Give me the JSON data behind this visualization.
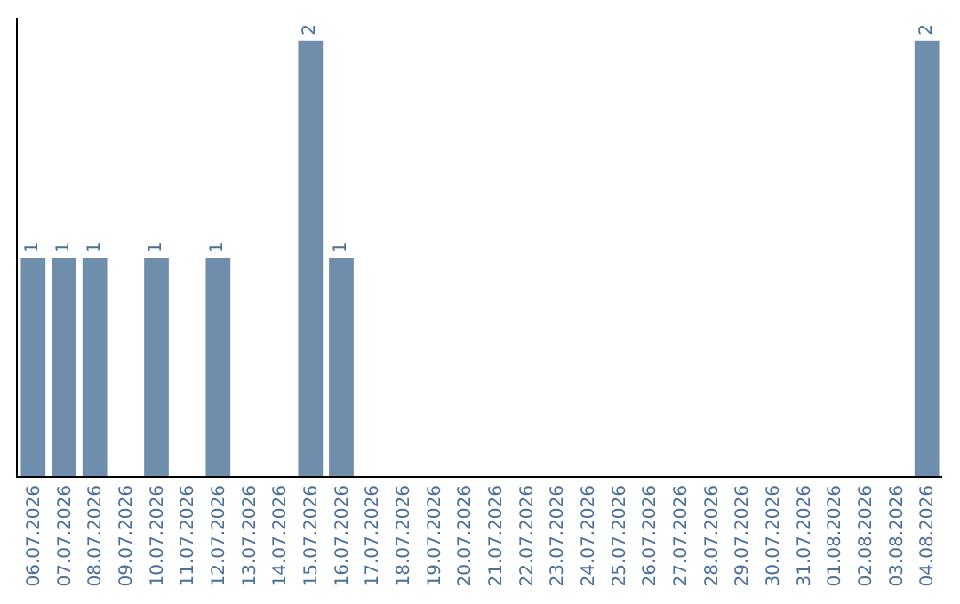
{
  "chart_data": {
    "type": "bar",
    "categories": [
      "06.07.2026",
      "07.07.2026",
      "08.07.2026",
      "09.07.2026",
      "10.07.2026",
      "11.07.2026",
      "12.07.2026",
      "13.07.2026",
      "14.07.2026",
      "15.07.2026",
      "16.07.2026",
      "17.07.2026",
      "18.07.2026",
      "19.07.2026",
      "20.07.2026",
      "21.07.2026",
      "22.07.2026",
      "23.07.2026",
      "24.07.2026",
      "25.07.2026",
      "26.07.2026",
      "27.07.2026",
      "28.07.2026",
      "29.07.2026",
      "30.07.2026",
      "31.07.2026",
      "01.08.2026",
      "02.08.2026",
      "03.08.2026",
      "04.08.2026"
    ],
    "values": [
      1,
      1,
      1,
      0,
      1,
      0,
      1,
      0,
      0,
      2,
      1,
      0,
      0,
      0,
      0,
      0,
      0,
      0,
      0,
      0,
      0,
      0,
      0,
      0,
      0,
      0,
      0,
      0,
      0,
      2
    ],
    "value_labels": [
      "1",
      "1",
      "1",
      null,
      "1",
      null,
      "1",
      null,
      null,
      "2",
      "1",
      null,
      null,
      null,
      null,
      null,
      null,
      null,
      null,
      null,
      null,
      null,
      null,
      null,
      null,
      null,
      null,
      null,
      null,
      "2"
    ],
    "color": "#6f8eab",
    "tick_labels": "x",
    "grid": false,
    "legend": false
  }
}
